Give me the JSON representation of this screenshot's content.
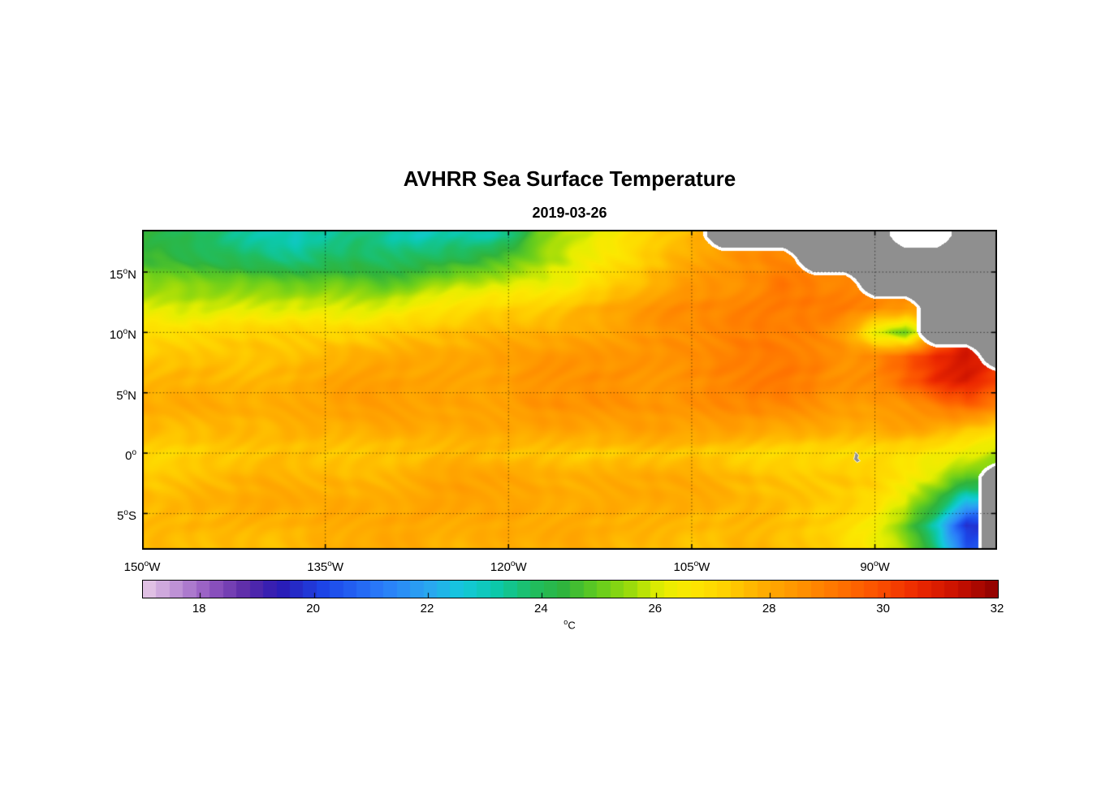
{
  "title": "AVHRR Sea Surface Temperature",
  "subtitle": "2019-03-26",
  "chart_data": {
    "type": "heatmap",
    "variable": "Sea Surface Temperature",
    "units": "degrees Celsius",
    "lon_range": [
      -150,
      -80
    ],
    "lat_range": [
      -8,
      18.5
    ],
    "grid_on": true,
    "grid_style": "dotted",
    "land_color": "#8f8f8f",
    "nodata_color": "#ffffff",
    "coastline_color": "#ffffff",
    "axes_color": "#000000",
    "x_ticks": [
      {
        "lon": -150,
        "label": "150^oW"
      },
      {
        "lon": -135,
        "label": "135^oW"
      },
      {
        "lon": -120,
        "label": "120^oW"
      },
      {
        "lon": -105,
        "label": "105^oW"
      },
      {
        "lon": -90,
        "label": "90^oW"
      }
    ],
    "y_ticks": [
      {
        "lat": 15,
        "label": "15^oN"
      },
      {
        "lat": 10,
        "label": "10^oN"
      },
      {
        "lat": 5,
        "label": "5^oN"
      },
      {
        "lat": 0,
        "label": "0^o"
      },
      {
        "lat": -5,
        "label": "5^oS"
      }
    ],
    "colorbar": {
      "min": 17,
      "max": 32,
      "ticks": [
        18,
        20,
        22,
        24,
        26,
        28,
        30,
        32
      ],
      "tick_labels": [
        "18",
        "20",
        "22",
        "24",
        "26",
        "28",
        "30",
        "32"
      ],
      "label": "^oC",
      "orientation": "horizontal",
      "segments": 64
    },
    "colormap": [
      [
        17.0,
        "#e8cce8"
      ],
      [
        17.5,
        "#c49ad8"
      ],
      [
        18.2,
        "#9055c0"
      ],
      [
        18.8,
        "#5c2ca8"
      ],
      [
        19.4,
        "#2a1ab4"
      ],
      [
        20.2,
        "#1c46e8"
      ],
      [
        21.2,
        "#2a7cfa"
      ],
      [
        22.0,
        "#2aa6f0"
      ],
      [
        22.6,
        "#14c8dc"
      ],
      [
        23.2,
        "#0cc8aa"
      ],
      [
        23.8,
        "#1ebe64"
      ],
      [
        24.4,
        "#30b43c"
      ],
      [
        25.0,
        "#64cc1e"
      ],
      [
        25.6,
        "#a0dc0a"
      ],
      [
        26.1,
        "#e6ee00"
      ],
      [
        26.6,
        "#fce800"
      ],
      [
        27.2,
        "#ffd200"
      ],
      [
        27.8,
        "#ffb000"
      ],
      [
        28.5,
        "#ff9400"
      ],
      [
        29.2,
        "#ff7300"
      ],
      [
        29.9,
        "#fb5000"
      ],
      [
        30.6,
        "#ec2800"
      ],
      [
        31.3,
        "#c81000"
      ],
      [
        32.0,
        "#8c0000"
      ]
    ],
    "islands": [
      {
        "name": "Galapagos",
        "lon": -91.6,
        "lat": -0.3
      }
    ],
    "grid": {
      "lons": [
        -150,
        -147.5,
        -145,
        -142.5,
        -140,
        -137.5,
        -135,
        -132.5,
        -130,
        -127.5,
        -125,
        -122.5,
        -120,
        -117.5,
        -115,
        -112.5,
        -110,
        -107.5,
        -105,
        -102.5,
        -100,
        -97.5,
        -95,
        -92.5,
        -90,
        -87.5,
        -85,
        -82.5,
        -80
      ],
      "lats": [
        18,
        16,
        14,
        12,
        10,
        8,
        6,
        4,
        2,
        0,
        -2,
        -4,
        -6,
        -8
      ],
      "sst": [
        [
          24.2,
          24.0,
          23.8,
          23.5,
          23.3,
          23.0,
          23.3,
          23.6,
          23.2,
          23.0,
          23.4,
          23.2,
          23.6,
          25.0,
          25.6,
          26.2,
          26.8,
          27.4,
          27.8,
          "L",
          "L",
          "L",
          "L",
          "L",
          "L",
          null,
          null,
          "L",
          "L"
        ],
        [
          24.6,
          24.4,
          24.2,
          24.0,
          23.8,
          23.6,
          23.8,
          24.0,
          23.8,
          23.9,
          24.2,
          24.4,
          24.8,
          25.5,
          26.0,
          26.5,
          27.0,
          27.5,
          28.0,
          28.4,
          28.6,
          28.8,
          "L",
          "L",
          "L",
          "L",
          "L",
          "L",
          "L"
        ],
        [
          25.6,
          25.5,
          25.3,
          25.2,
          25.0,
          25.0,
          25.2,
          25.1,
          25.0,
          25.2,
          25.5,
          25.8,
          26.0,
          26.3,
          26.6,
          27.0,
          27.4,
          27.8,
          28.2,
          28.5,
          28.7,
          29.2,
          29.0,
          28.6,
          "L",
          "L",
          "L",
          "L",
          "L"
        ],
        [
          26.2,
          26.1,
          26.0,
          25.9,
          25.8,
          26.0,
          26.1,
          26.2,
          26.3,
          26.5,
          26.7,
          26.9,
          27.1,
          27.4,
          27.7,
          28.0,
          28.2,
          28.4,
          28.6,
          28.8,
          29.0,
          29.2,
          29.1,
          28.9,
          28.6,
          28.4,
          "L",
          "L",
          "L"
        ],
        [
          27.0,
          27.0,
          27.1,
          27.1,
          27.2,
          27.2,
          27.1,
          27.2,
          27.3,
          27.4,
          27.5,
          27.6,
          27.8,
          27.9,
          28.0,
          28.1,
          28.3,
          28.4,
          28.6,
          28.8,
          29.0,
          29.0,
          28.8,
          28.2,
          26.0,
          24.8,
          "L",
          "L",
          "L"
        ],
        [
          27.3,
          27.4,
          27.5,
          27.5,
          27.6,
          27.6,
          27.7,
          27.8,
          27.9,
          28.0,
          28.0,
          28.1,
          28.2,
          28.3,
          28.4,
          28.4,
          28.5,
          28.6,
          28.7,
          28.9,
          29.0,
          29.0,
          28.9,
          28.6,
          28.8,
          29.6,
          30.6,
          31.0,
          "L"
        ],
        [
          27.6,
          27.6,
          27.7,
          27.8,
          27.8,
          27.9,
          28.0,
          28.0,
          28.1,
          28.1,
          28.2,
          28.2,
          28.3,
          28.4,
          28.4,
          28.5,
          28.5,
          28.6,
          28.7,
          28.8,
          28.9,
          28.9,
          28.8,
          28.6,
          28.8,
          29.6,
          30.5,
          30.8,
          30.0
        ],
        [
          27.8,
          27.8,
          27.9,
          28.0,
          28.0,
          28.0,
          28.1,
          28.1,
          28.2,
          28.2,
          28.2,
          28.3,
          28.3,
          28.4,
          28.4,
          28.5,
          28.5,
          28.6,
          28.6,
          28.7,
          28.7,
          28.6,
          28.5,
          28.4,
          28.4,
          28.6,
          29.0,
          29.4,
          29.0
        ],
        [
          27.6,
          27.6,
          27.6,
          27.7,
          27.7,
          27.8,
          27.8,
          27.9,
          27.9,
          28.0,
          28.0,
          28.0,
          28.1,
          28.1,
          28.1,
          28.1,
          28.2,
          28.2,
          28.2,
          28.2,
          28.1,
          28.0,
          27.9,
          27.9,
          28.0,
          28.1,
          28.0,
          27.5,
          26.8
        ],
        [
          27.2,
          27.2,
          27.3,
          27.3,
          27.4,
          27.4,
          27.5,
          27.5,
          27.5,
          27.5,
          27.5,
          27.5,
          27.5,
          27.4,
          27.4,
          27.4,
          27.3,
          27.3,
          27.3,
          27.2,
          27.2,
          27.1,
          27.0,
          26.9,
          26.8,
          26.7,
          26.6,
          26.3,
          25.8
        ],
        [
          27.5,
          27.5,
          27.6,
          27.6,
          27.7,
          27.7,
          27.8,
          27.8,
          27.9,
          27.9,
          28.0,
          28.0,
          28.0,
          28.0,
          28.0,
          27.9,
          27.9,
          27.8,
          27.8,
          27.8,
          27.7,
          27.6,
          27.5,
          27.3,
          27.1,
          26.6,
          26.0,
          25.0,
          "L"
        ],
        [
          27.7,
          27.7,
          27.8,
          27.8,
          27.9,
          27.9,
          28.0,
          28.0,
          28.0,
          28.1,
          28.1,
          28.1,
          28.1,
          28.1,
          28.0,
          28.0,
          27.9,
          27.9,
          27.8,
          27.8,
          27.7,
          27.6,
          27.4,
          27.2,
          26.8,
          26.0,
          24.6,
          22.5,
          "L"
        ],
        [
          27.5,
          27.6,
          27.7,
          27.7,
          27.8,
          27.8,
          27.9,
          27.9,
          28.0,
          28.0,
          28.0,
          28.0,
          28.0,
          27.9,
          27.9,
          27.8,
          27.8,
          27.7,
          27.7,
          27.6,
          27.6,
          27.5,
          27.3,
          27.0,
          26.5,
          25.2,
          23.0,
          19.8,
          "L"
        ],
        [
          27.4,
          27.5,
          27.5,
          27.6,
          27.6,
          27.7,
          27.7,
          27.8,
          27.8,
          27.9,
          27.9,
          27.9,
          27.9,
          27.8,
          27.8,
          27.8,
          27.7,
          27.7,
          27.6,
          27.6,
          27.5,
          27.4,
          27.3,
          27.0,
          26.6,
          25.6,
          23.6,
          20.5,
          "L"
        ]
      ]
    }
  }
}
